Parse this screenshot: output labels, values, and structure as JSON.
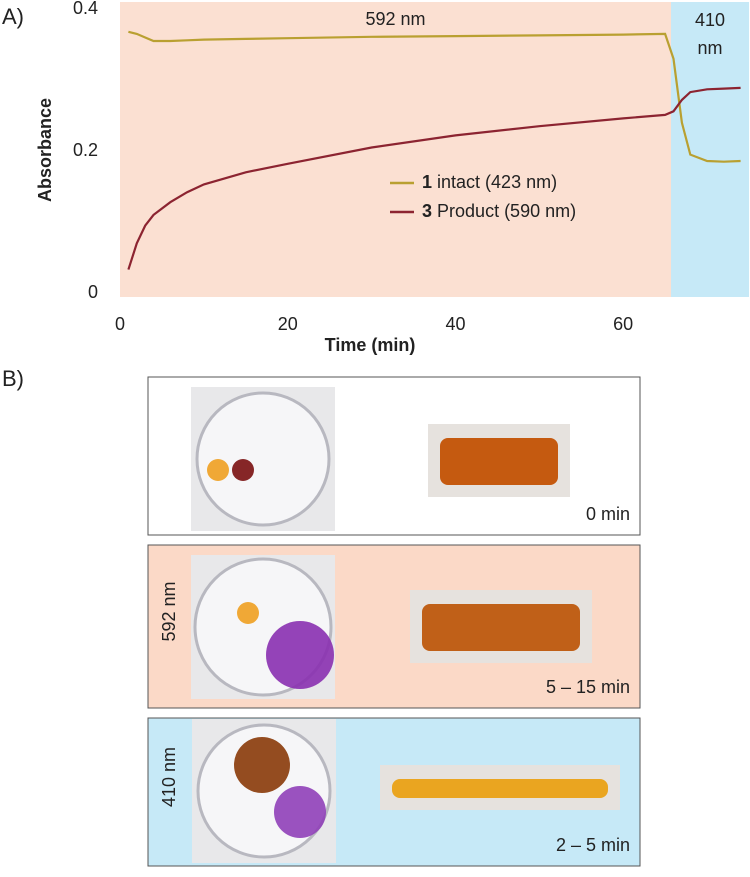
{
  "panel_labels": [
    "A)",
    "B)"
  ],
  "chart_data": {
    "type": "line",
    "xlabel": "Time (min)",
    "ylabel": "Absorbance",
    "xlim": [
      0,
      75
    ],
    "ylim": [
      0,
      0.41
    ],
    "xticks": [
      0,
      20,
      40,
      60
    ],
    "yticks": [
      0,
      0.2,
      0.4
    ],
    "regions": [
      {
        "label": "592 nm",
        "start": 0,
        "end": 65.7,
        "color": "#fbe0d2"
      },
      {
        "label": "410 nm",
        "start": 65.7,
        "end": 75,
        "color": "#c6e9f7"
      }
    ],
    "x": [
      1,
      2,
      3,
      4,
      6,
      8,
      10,
      15,
      20,
      30,
      40,
      50,
      60,
      65,
      66,
      67,
      68,
      70,
      72,
      74
    ],
    "series": [
      {
        "compound": "1",
        "name": "intact (423 nm)",
        "color": "#b9a031",
        "values": [
          0.368,
          0.365,
          0.36,
          0.355,
          0.355,
          0.356,
          0.357,
          0.358,
          0.359,
          0.361,
          0.362,
          0.363,
          0.364,
          0.365,
          0.33,
          0.24,
          0.195,
          0.186,
          0.185,
          0.186
        ]
      },
      {
        "compound": "3",
        "name": "Product (590 nm)",
        "color": "#8c2431",
        "values": [
          0.033,
          0.07,
          0.095,
          0.11,
          0.128,
          0.142,
          0.153,
          0.17,
          0.182,
          0.205,
          0.222,
          0.235,
          0.246,
          0.251,
          0.256,
          0.272,
          0.283,
          0.287,
          0.288,
          0.289
        ]
      }
    ],
    "legend": "center"
  },
  "photo_panels": [
    {
      "time": "0 min",
      "color": "#ffffff"
    },
    {
      "side_label": "592 nm",
      "time": "5 – 15 min",
      "color": "#fbd9c7"
    },
    {
      "side_label": "410 nm",
      "time": "2 – 5 min",
      "color": "#c6e9f7"
    }
  ]
}
